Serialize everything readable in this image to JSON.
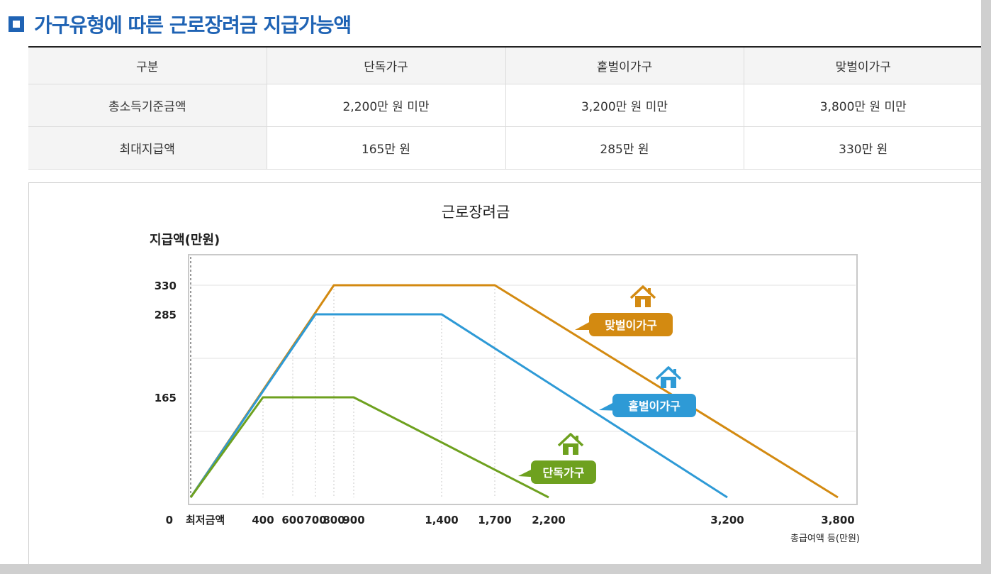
{
  "heading": {
    "title": "가구유형에 따른 근로장려금 지급가능액"
  },
  "table": {
    "headers": [
      "구분",
      "단독가구",
      "홑벌이가구",
      "맞벌이가구"
    ],
    "rows": [
      [
        "총소득기준금액",
        "2,200만 원 미만",
        "3,200만 원 미만",
        "3,800만 원 미만"
      ],
      [
        "최대지급액",
        "165만 원",
        "285만 원",
        "330만 원"
      ]
    ]
  },
  "chart_data": {
    "type": "line",
    "title": "근로장려금",
    "ylabel": "지급액(만원)",
    "xlabel": "총급여액 등(만원)",
    "x_start_label": "최저금액",
    "y_tick_labels": [
      "0",
      "165",
      "285",
      "330"
    ],
    "x_tick_labels": [
      "400",
      "600",
      "700",
      "800",
      "900",
      "1,400",
      "1,700",
      "2,200",
      "3,200",
      "3,800"
    ],
    "grid": true,
    "colors": {
      "단독가구": "#6ea11f",
      "홑벌이가구": "#2e9ad6",
      "맞벌이가구": "#d38a11"
    },
    "series": [
      {
        "name": "단독가구",
        "x": [
          0,
          400,
          900,
          2200
        ],
        "y": [
          0,
          165,
          165,
          0
        ]
      },
      {
        "name": "홑벌이가구",
        "x": [
          0,
          700,
          1400,
          3200
        ],
        "y": [
          0,
          285,
          285,
          0
        ]
      },
      {
        "name": "맞벌이가구",
        "x": [
          0,
          800,
          1700,
          3800
        ],
        "y": [
          0,
          330,
          330,
          0
        ]
      }
    ]
  }
}
